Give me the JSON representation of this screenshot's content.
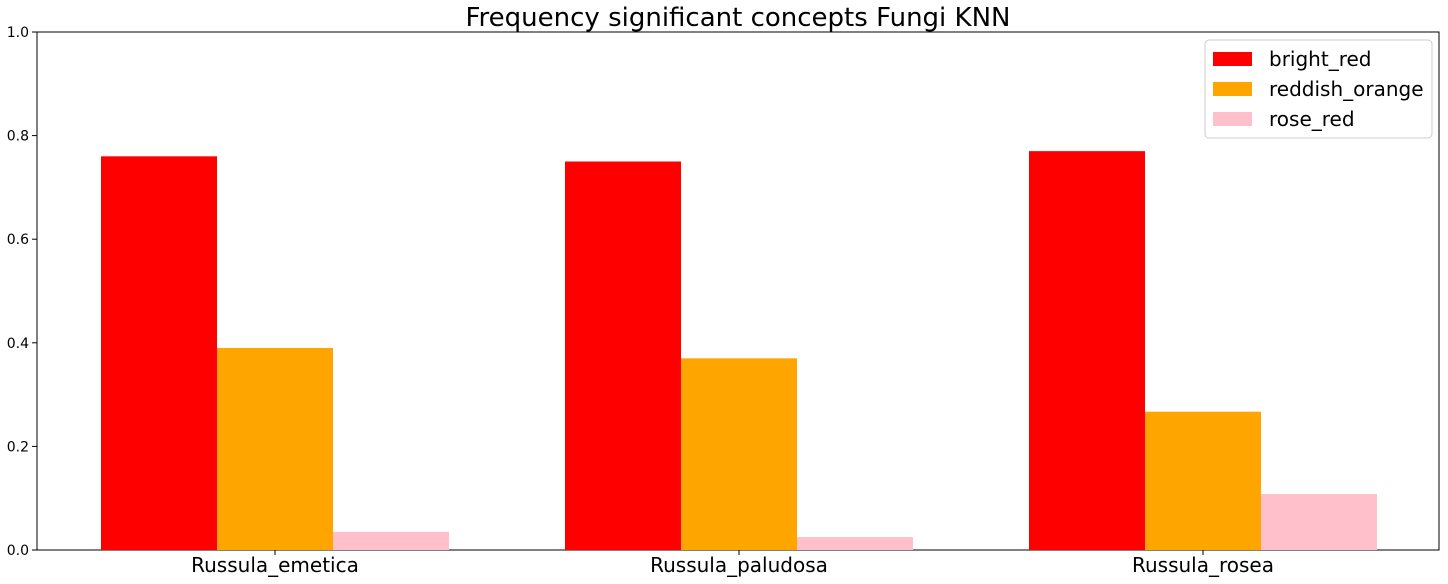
{
  "chart_data": {
    "type": "bar",
    "title": "Frequency significant concepts Fungi KNN",
    "xlabel": "",
    "ylabel": "",
    "ylim": [
      0,
      1.0
    ],
    "yticks": [
      "0.0",
      "0.2",
      "0.4",
      "0.6",
      "0.8",
      "1.0"
    ],
    "categories": [
      "Russula_emetica",
      "Russula_paludosa",
      "Russula_rosea"
    ],
    "series": [
      {
        "name": "bright_red",
        "color": "#ff0000",
        "values": [
          0.76,
          0.75,
          0.77
        ]
      },
      {
        "name": "reddish_orange",
        "color": "#ffa500",
        "values": [
          0.39,
          0.37,
          0.267
        ]
      },
      {
        "name": "rose_red",
        "color": "#ffc0cb",
        "values": [
          0.035,
          0.025,
          0.108
        ]
      }
    ],
    "legend": "top-right",
    "grid": false
  }
}
